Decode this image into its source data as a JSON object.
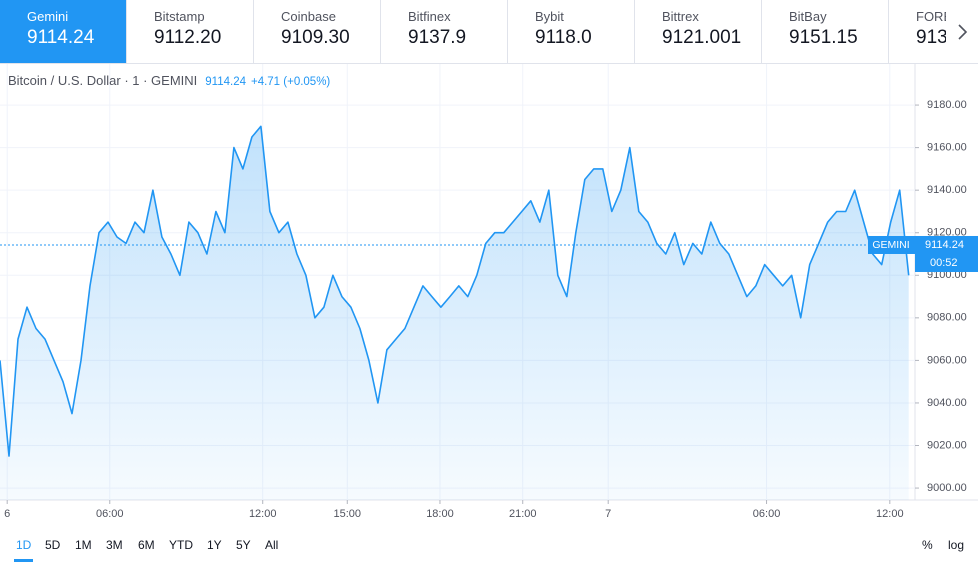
{
  "tabs": [
    {
      "name": "Gemini",
      "price": "9114.24"
    },
    {
      "name": "Bitstamp",
      "price": "9112.20"
    },
    {
      "name": "Coinbase",
      "price": "9109.30"
    },
    {
      "name": "Bitfinex",
      "price": "9137.9"
    },
    {
      "name": "Bybit",
      "price": "9118.0"
    },
    {
      "name": "Bittrex",
      "price": "9121.001"
    },
    {
      "name": "BitBay",
      "price": "9151.15"
    },
    {
      "name": "FORE",
      "price": "913"
    }
  ],
  "chart_data": {
    "type": "area",
    "title": "Bitcoin / U.S. Dollar · 1 · GEMINI",
    "quote": "9114.24",
    "change": "+4.71 (+0.05%)",
    "exchange_label": "GEMINI",
    "last_price": 9114.24,
    "countdown": "00:52",
    "color": "#2196f3",
    "values": [
      9060,
      9015,
      9070,
      9085,
      9075,
      9070,
      9060,
      9050,
      9035,
      9060,
      9095,
      9120,
      9125,
      9118,
      9115,
      9125,
      9120,
      9140,
      9118,
      9110,
      9100,
      9125,
      9120,
      9110,
      9130,
      9120,
      9160,
      9150,
      9165,
      9170,
      9130,
      9120,
      9125,
      9110,
      9100,
      9080,
      9085,
      9100,
      9090,
      9085,
      9075,
      9060,
      9040,
      9065,
      9070,
      9075,
      9085,
      9095,
      9090,
      9085,
      9090,
      9095,
      9090,
      9100,
      9115,
      9120,
      9120,
      9125,
      9130,
      9135,
      9125,
      9140,
      9100,
      9090,
      9120,
      9145,
      9150,
      9150,
      9130,
      9140,
      9160,
      9130,
      9125,
      9115,
      9110,
      9120,
      9105,
      9115,
      9110,
      9125,
      9115,
      9110,
      9100,
      9090,
      9095,
      9105,
      9100,
      9095,
      9100,
      9080,
      9105,
      9115,
      9125,
      9130,
      9130,
      9140,
      9125,
      9110,
      9105,
      9125,
      9140,
      9100
    ],
    "xlim": [
      0,
      101.7
    ],
    "xticks": [
      {
        "value": 0.8,
        "label": "6"
      },
      {
        "value": 12.2,
        "label": "06:00"
      },
      {
        "value": 29.2,
        "label": "12:00"
      },
      {
        "value": 38.6,
        "label": "15:00"
      },
      {
        "value": 48.9,
        "label": "18:00"
      },
      {
        "value": 58.1,
        "label": "21:00"
      },
      {
        "value": 67.6,
        "label": "7"
      },
      {
        "value": 85.2,
        "label": "06:00"
      },
      {
        "value": 98.9,
        "label": "12:00"
      }
    ],
    "ylim": [
      8995.8,
      9199.3
    ],
    "yticks": [
      {
        "value": 9000,
        "label": "9000.00"
      },
      {
        "value": 9020,
        "label": "9020.00"
      },
      {
        "value": 9040,
        "label": "9040.00"
      },
      {
        "value": 9060,
        "label": "9060.00"
      },
      {
        "value": 9080,
        "label": "9080.00"
      },
      {
        "value": 9100,
        "label": "9100.00"
      },
      {
        "value": 9120,
        "label": "9120.00"
      },
      {
        "value": 9140,
        "label": "9140.00"
      },
      {
        "value": 9160,
        "label": "9160.00"
      },
      {
        "value": 9180,
        "label": "9180.00"
      }
    ],
    "grid": true
  },
  "ranges": [
    "1D",
    "5D",
    "1M",
    "3M",
    "6M",
    "YTD",
    "1Y",
    "5Y",
    "All"
  ],
  "scale_options": [
    "%",
    "log"
  ]
}
